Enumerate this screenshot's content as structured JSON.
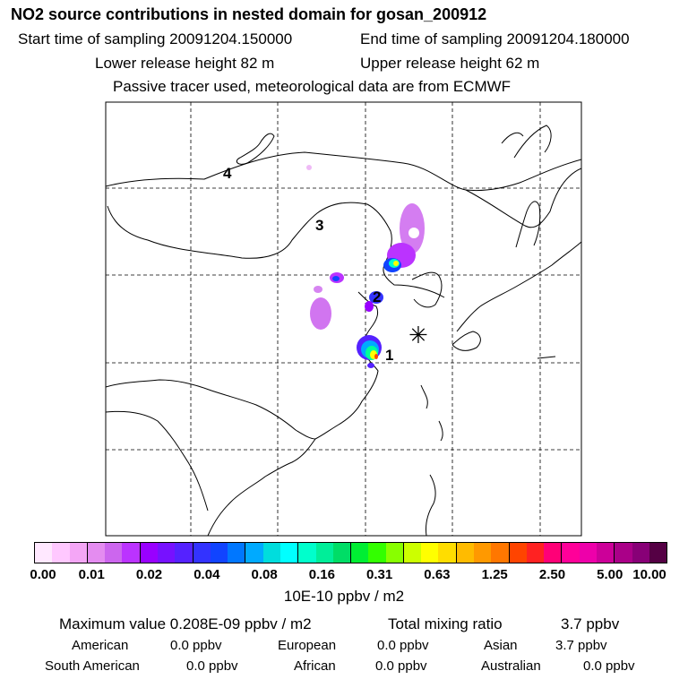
{
  "header": {
    "title": "NO2 source contributions in nested domain for gosan_200912",
    "start_label": "Start time of sampling 20091204.150000",
    "end_label": "End time of sampling 20091204.180000",
    "lower_label": "Lower release height   82 m",
    "upper_label": "Upper release height   62 m",
    "note": "Passive tracer used, meteorological data are from ECMWF"
  },
  "map": {
    "markers": [
      "4",
      "3",
      "2",
      "1"
    ],
    "receptor_symbol": "✳"
  },
  "colorbar": {
    "colors": [
      "#ffe8ff",
      "#ffc8ff",
      "#f4a6f6",
      "#e48cf0",
      "#cc66ee",
      "#bb33ff",
      "#9900ff",
      "#7711ff",
      "#5522ff",
      "#3333ff",
      "#1144ff",
      "#0077ff",
      "#00aaff",
      "#00dddd",
      "#00ffff",
      "#00ffcc",
      "#00ee99",
      "#00dd66",
      "#00ee33",
      "#33ff00",
      "#88ff00",
      "#ccff00",
      "#ffff00",
      "#ffdd00",
      "#ffbb00",
      "#ff9900",
      "#ff7700",
      "#ff4400",
      "#ff2222",
      "#ff0077",
      "#ff0099",
      "#ee00aa",
      "#cc0099",
      "#aa0088",
      "#880077",
      "#550044"
    ],
    "ticks": [
      "0.00",
      "0.01",
      "0.02",
      "0.04",
      "0.08",
      "0.16",
      "0.31",
      "0.63",
      "1.25",
      "2.50",
      "5.00",
      "10.00"
    ],
    "unit": "10E-10 ppbv / m2"
  },
  "footer": {
    "max_label": "Maximum value  0.208E-09 ppbv / m2",
    "total_label": "Total mixing ratio",
    "total_value": "3.7 ppbv",
    "american_label": "American",
    "american_value": "0.0 ppbv",
    "european_label": "European",
    "european_value": "0.0 ppbv",
    "asian_label": "Asian",
    "asian_value": "3.7 ppbv",
    "south_american_label": "South American",
    "south_american_value": "0.0 ppbv",
    "african_label": "African",
    "african_value": "0.0 ppbv",
    "australian_label": "Australian",
    "australian_value": "0.0 ppbv"
  }
}
